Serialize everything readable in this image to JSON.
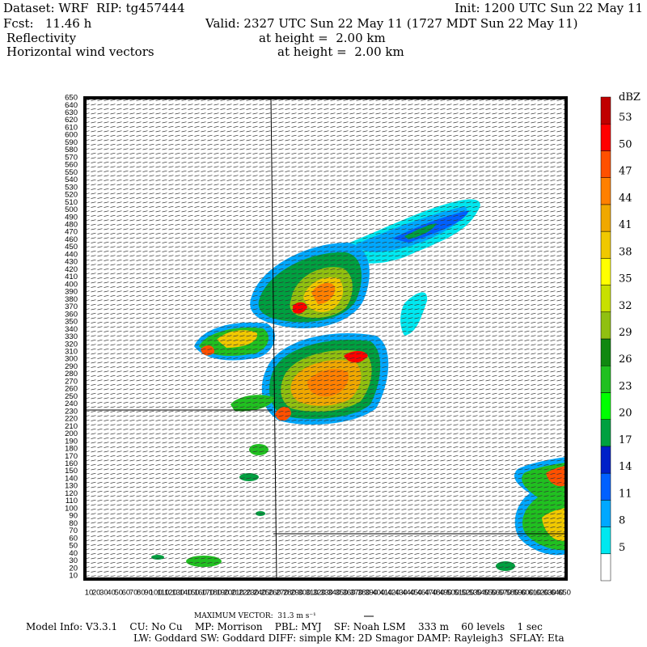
{
  "header": {
    "dataset": "Dataset: WRF  RIP: tg457444",
    "init": "Init: 1200 UTC Sun 22 May 11",
    "forecast": "Fcst:   11.46 h",
    "valid": "Valid: 2327 UTC Sun 22 May 11 (1727 MDT Sun 22 May 11)",
    "field1": "Reflectivity",
    "field1_level": "at height =  2.00 km",
    "field2": "Horizontal wind vectors",
    "field2_level": "at height =  2.00 km"
  },
  "colorbar": {
    "unit": "dBZ",
    "levels": [
      5,
      8,
      11,
      14,
      17,
      20,
      23,
      26,
      29,
      32,
      35,
      38,
      41,
      44,
      47,
      50,
      53
    ],
    "colors": [
      "#ffffff",
      "#00e8f0",
      "#00a8ff",
      "#0060ff",
      "#0020c8",
      "#00a040",
      "#00ff00",
      "#20c020",
      "#108810",
      "#90c010",
      "#c8e000",
      "#ffff00",
      "#f0c800",
      "#f0a800",
      "#ff8000",
      "#ff5000",
      "#ff0000",
      "#c00000"
    ]
  },
  "axes": {
    "y_ticks": [
      10,
      20,
      30,
      40,
      50,
      60,
      70,
      80,
      90,
      100,
      110,
      120,
      130,
      140,
      150,
      160,
      170,
      180,
      190,
      200,
      210,
      220,
      230,
      240,
      250,
      260,
      270,
      280,
      290,
      300,
      310,
      320,
      330,
      340,
      350,
      360,
      370,
      380,
      390,
      400,
      410,
      420,
      430,
      440,
      450,
      460,
      470,
      480,
      490,
      500,
      510,
      520,
      530,
      540,
      550,
      560,
      570,
      580,
      590,
      600,
      610,
      620,
      630,
      640,
      650
    ],
    "x_ticks": [
      10,
      20,
      30,
      40,
      50,
      60,
      70,
      80,
      90,
      100,
      110,
      120,
      130,
      140,
      150,
      160,
      170,
      180,
      190,
      200,
      210,
      220,
      230,
      240,
      250,
      260,
      270,
      280,
      290,
      300,
      310,
      320,
      330,
      340,
      350,
      360,
      370,
      380,
      390,
      400,
      410,
      420,
      430,
      440,
      450,
      460,
      470,
      480,
      490,
      500,
      510,
      520,
      530,
      540,
      550,
      560,
      570,
      580,
      590,
      600,
      610,
      620,
      630,
      640,
      650
    ]
  },
  "footer": {
    "max_vector": "MAXIMUM VECTOR:  31.3 m s⁻¹",
    "model_info": "Model Info: V3.3.1    CU: No Cu    MP: Morrison    PBL: MYJ    SF: Noah LSM    333 m    60 levels    1 sec",
    "physics": "LW: Goddard SW: Goddard DIFF: simple KM: 2D Smagor DAMP: Rayleigh3  SFLAY: Eta"
  }
}
